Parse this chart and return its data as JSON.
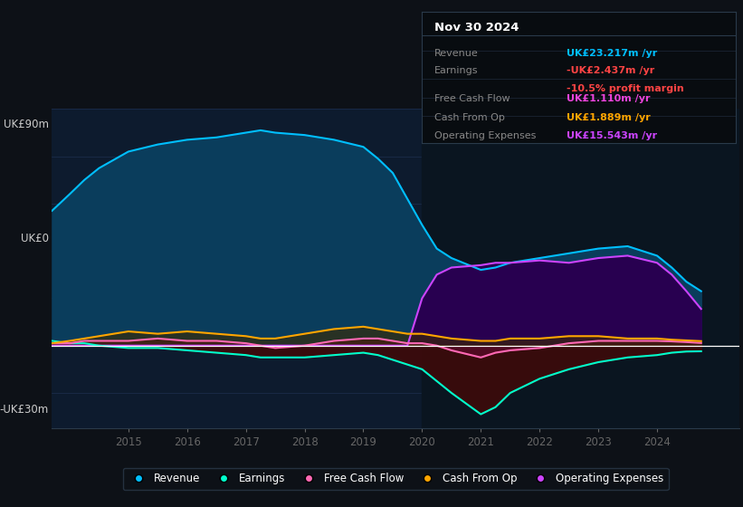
{
  "bg_color": "#0d1117",
  "plot_bg_color": "#0d1b2e",
  "grid_color": "#1e3050",
  "zero_line_color": "#ffffff",
  "ylim": [
    -35,
    100
  ],
  "xlim": [
    2013.7,
    2025.4
  ],
  "xticks": [
    2015,
    2016,
    2017,
    2018,
    2019,
    2020,
    2021,
    2022,
    2023,
    2024
  ],
  "revenue_color": "#00bfff",
  "revenue_fill": "#0a3d5c",
  "earnings_color": "#00ffcc",
  "earnings_fill": "#3d0a0a",
  "fcf_color": "#ff69b4",
  "fcf_fill": "#5c0a2a",
  "cashop_color": "#ffa500",
  "cashop_fill": "#3d2a00",
  "opex_color": "#cc44ff",
  "opex_fill": "#280050",
  "shaded_bg": "#0a1520",
  "legend_bg": "#0d1117",
  "legend_border": "#2a3a4a",
  "info_box_bg": "#080c10",
  "info_box_border": "#2a3a4a",
  "years": [
    2013.7,
    2014.0,
    2014.25,
    2014.5,
    2015.0,
    2015.5,
    2016.0,
    2016.5,
    2017.0,
    2017.25,
    2017.5,
    2018.0,
    2018.5,
    2019.0,
    2019.25,
    2019.5,
    2019.75,
    2020.0,
    2020.25,
    2020.5,
    2021.0,
    2021.25,
    2021.5,
    2022.0,
    2022.5,
    2023.0,
    2023.5,
    2024.0,
    2024.25,
    2024.5,
    2024.75
  ],
  "revenue": [
    57,
    64,
    70,
    75,
    82,
    85,
    87,
    88,
    90,
    91,
    90,
    89,
    87,
    84,
    79,
    73,
    62,
    51,
    41,
    37,
    32,
    33,
    35,
    37,
    39,
    41,
    42,
    38,
    33,
    27,
    23
  ],
  "earnings": [
    2,
    1,
    1,
    0,
    -1,
    -1,
    -2,
    -3,
    -4,
    -5,
    -5,
    -5,
    -4,
    -3,
    -4,
    -6,
    -8,
    -10,
    -15,
    -20,
    -29,
    -26,
    -20,
    -14,
    -10,
    -7,
    -5,
    -4,
    -3,
    -2.5,
    -2.4
  ],
  "fcf": [
    1,
    1,
    2,
    2,
    2,
    3,
    2,
    2,
    1,
    0,
    -1,
    0,
    2,
    3,
    3,
    2,
    1,
    1,
    0,
    -2,
    -5,
    -3,
    -2,
    -1,
    1,
    2,
    2,
    2,
    1.8,
    1.5,
    1.1
  ],
  "cashop": [
    1,
    2,
    3,
    4,
    6,
    5,
    6,
    5,
    4,
    3,
    3,
    5,
    7,
    8,
    7,
    6,
    5,
    5,
    4,
    3,
    2,
    2,
    3,
    3,
    4,
    4,
    3,
    3,
    2.5,
    2.2,
    1.9
  ],
  "opex": [
    0,
    0,
    0,
    0,
    0,
    0,
    0,
    0,
    0,
    0,
    0,
    0,
    0,
    0,
    0,
    0,
    0,
    20,
    30,
    33,
    34,
    35,
    35,
    36,
    35,
    37,
    38,
    35,
    30,
    23,
    15.5
  ],
  "shaded_start": 2020.0,
  "shaded_end": 2025.4,
  "info_title": "Nov 30 2024",
  "info_rows": [
    {
      "label": "Revenue",
      "value": "UK£23.217m /yr",
      "value_color": "#00bfff",
      "extra": null
    },
    {
      "label": "Earnings",
      "value": "-UK£2.437m /yr",
      "value_color": "#ff4444",
      "extra": "-10.5% profit margin",
      "extra_color": "#ff4444"
    },
    {
      "label": "Free Cash Flow",
      "value": "UK£1.110m /yr",
      "value_color": "#ee44dd",
      "extra": null
    },
    {
      "label": "Cash From Op",
      "value": "UK£1.889m /yr",
      "value_color": "#ffa500",
      "extra": null
    },
    {
      "label": "Operating Expenses",
      "value": "UK£15.543m /yr",
      "value_color": "#cc44ff",
      "extra": null
    }
  ],
  "legend_entries": [
    {
      "label": "Revenue",
      "color": "#00bfff"
    },
    {
      "label": "Earnings",
      "color": "#00ffcc"
    },
    {
      "label": "Free Cash Flow",
      "color": "#ff69b4"
    },
    {
      "label": "Cash From Op",
      "color": "#ffa500"
    },
    {
      "label": "Operating Expenses",
      "color": "#cc44ff"
    }
  ]
}
